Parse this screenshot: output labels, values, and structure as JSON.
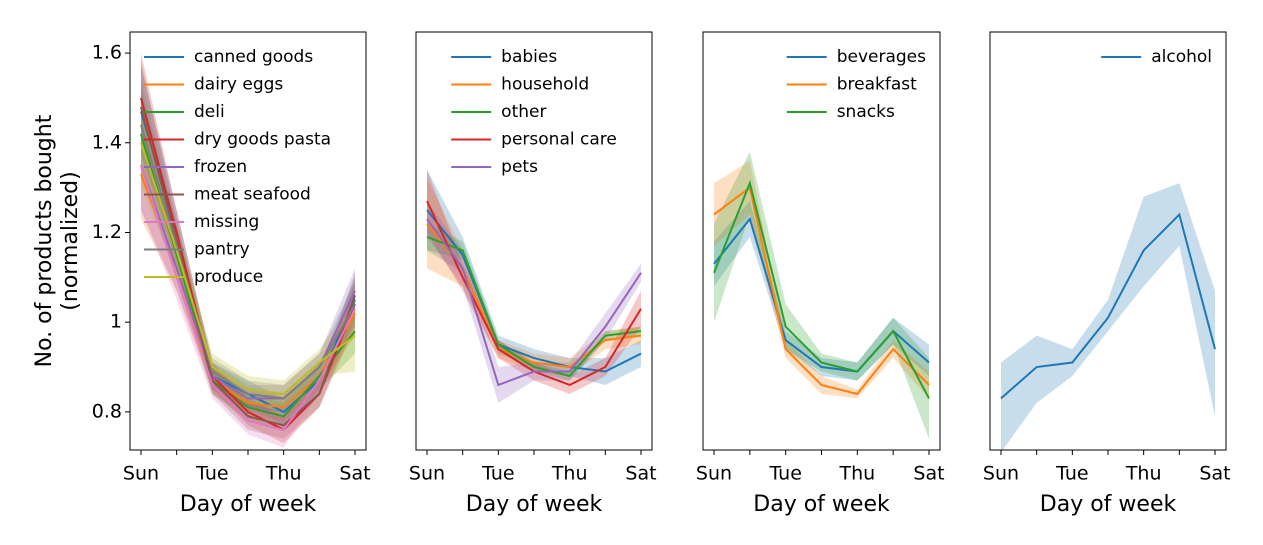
{
  "chart_data": [
    {
      "type": "line",
      "ylabel": "No. of products bought\n(normalized)",
      "xlabel": "Day of week",
      "categories": [
        "Sun",
        null,
        "Tue",
        null,
        "Thu",
        null,
        "Sat"
      ],
      "ylim": [
        0.715,
        1.647
      ],
      "yticks": [
        0.8,
        1.0,
        1.2,
        1.4,
        1.6
      ],
      "legend": "upper left",
      "series": [
        {
          "name": "canned goods",
          "color": "#1f77b4",
          "values": [
            1.47,
            1.2,
            0.88,
            0.84,
            0.8,
            0.87,
            1.05
          ],
          "lower": [
            1.37,
            1.15,
            0.85,
            0.81,
            0.77,
            0.84,
            1.0
          ],
          "upper": [
            1.57,
            1.25,
            0.91,
            0.87,
            0.83,
            0.9,
            1.1
          ]
        },
        {
          "name": "dairy eggs",
          "color": "#ff7f0e",
          "values": [
            1.33,
            1.12,
            0.87,
            0.82,
            0.81,
            0.88,
            1.02
          ],
          "lower": [
            1.23,
            1.07,
            0.84,
            0.79,
            0.78,
            0.85,
            0.97
          ],
          "upper": [
            1.43,
            1.17,
            0.9,
            0.85,
            0.84,
            0.91,
            1.07
          ]
        },
        {
          "name": "deli",
          "color": "#2ca02c",
          "values": [
            1.42,
            1.15,
            0.87,
            0.81,
            0.79,
            0.88,
            0.98
          ],
          "lower": [
            1.32,
            1.1,
            0.84,
            0.78,
            0.76,
            0.85,
            0.93
          ],
          "upper": [
            1.52,
            1.2,
            0.9,
            0.84,
            0.82,
            0.91,
            1.03
          ]
        },
        {
          "name": "dry goods pasta",
          "color": "#d62728",
          "values": [
            1.5,
            1.2,
            0.88,
            0.8,
            0.76,
            0.84,
            1.04
          ],
          "lower": [
            1.4,
            1.15,
            0.85,
            0.77,
            0.73,
            0.81,
            0.99
          ],
          "upper": [
            1.6,
            1.25,
            0.91,
            0.83,
            0.79,
            0.87,
            1.09
          ]
        },
        {
          "name": "frozen",
          "color": "#9467bd",
          "values": [
            1.35,
            1.12,
            0.88,
            0.83,
            0.83,
            0.9,
            1.07
          ],
          "lower": [
            1.25,
            1.07,
            0.85,
            0.8,
            0.8,
            0.87,
            1.02
          ],
          "upper": [
            1.45,
            1.17,
            0.91,
            0.86,
            0.86,
            0.93,
            1.12
          ]
        },
        {
          "name": "meat seafood",
          "color": "#8c564b",
          "values": [
            1.48,
            1.18,
            0.87,
            0.79,
            0.77,
            0.84,
            1.06
          ],
          "lower": [
            1.38,
            1.13,
            0.84,
            0.76,
            0.74,
            0.81,
            1.01
          ],
          "upper": [
            1.58,
            1.23,
            0.9,
            0.82,
            0.8,
            0.87,
            1.11
          ]
        },
        {
          "name": "missing",
          "color": "#e377c2",
          "values": [
            1.35,
            1.1,
            0.86,
            0.78,
            0.76,
            0.87,
            1.03
          ],
          "lower": [
            1.25,
            1.05,
            0.83,
            0.75,
            0.72,
            0.84,
            0.98
          ],
          "upper": [
            1.45,
            1.15,
            0.89,
            0.81,
            0.8,
            0.9,
            1.08
          ]
        },
        {
          "name": "pantry",
          "color": "#7f7f7f",
          "values": [
            1.44,
            1.17,
            0.89,
            0.84,
            0.83,
            0.9,
            1.04
          ],
          "lower": [
            1.34,
            1.12,
            0.86,
            0.81,
            0.8,
            0.87,
            0.99
          ],
          "upper": [
            1.54,
            1.22,
            0.92,
            0.87,
            0.86,
            0.93,
            1.09
          ]
        },
        {
          "name": "produce",
          "color": "#bcbd22",
          "values": [
            1.4,
            1.16,
            0.9,
            0.85,
            0.84,
            0.91,
            0.97
          ],
          "lower": [
            1.3,
            1.11,
            0.87,
            0.82,
            0.81,
            0.88,
            0.89
          ],
          "upper": [
            1.5,
            1.21,
            0.93,
            0.88,
            0.87,
            0.94,
            1.05
          ]
        }
      ]
    },
    {
      "type": "line",
      "xlabel": "Day of week",
      "categories": [
        "Sun",
        null,
        "Tue",
        null,
        "Thu",
        null,
        "Sat"
      ],
      "ylim": [
        0.715,
        1.647
      ],
      "legend": "upper center",
      "series": [
        {
          "name": "babies",
          "color": "#1f77b4",
          "values": [
            1.25,
            1.15,
            0.95,
            0.92,
            0.9,
            0.89,
            0.93
          ],
          "lower": [
            1.16,
            1.11,
            0.93,
            0.9,
            0.88,
            0.86,
            0.9
          ],
          "upper": [
            1.34,
            1.19,
            0.97,
            0.94,
            0.92,
            0.92,
            0.96
          ]
        },
        {
          "name": "household",
          "color": "#ff7f0e",
          "values": [
            1.22,
            1.12,
            0.94,
            0.91,
            0.9,
            0.96,
            0.97
          ],
          "lower": [
            1.12,
            1.08,
            0.92,
            0.89,
            0.88,
            0.94,
            0.95
          ],
          "upper": [
            1.32,
            1.16,
            0.96,
            0.93,
            0.92,
            0.98,
            0.99
          ]
        },
        {
          "name": "other",
          "color": "#2ca02c",
          "values": [
            1.19,
            1.16,
            0.95,
            0.9,
            0.88,
            0.97,
            0.98
          ],
          "lower": [
            1.16,
            1.14,
            0.94,
            0.89,
            0.87,
            0.96,
            0.97
          ],
          "upper": [
            1.22,
            1.18,
            0.96,
            0.91,
            0.89,
            0.98,
            0.99
          ]
        },
        {
          "name": "personal care",
          "color": "#d62728",
          "values": [
            1.27,
            1.1,
            0.94,
            0.89,
            0.86,
            0.9,
            1.03
          ],
          "lower": [
            1.2,
            1.07,
            0.92,
            0.87,
            0.84,
            0.88,
            0.99
          ],
          "upper": [
            1.34,
            1.13,
            0.96,
            0.91,
            0.88,
            0.92,
            1.07
          ]
        },
        {
          "name": "pets",
          "color": "#9467bd",
          "values": [
            1.23,
            1.12,
            0.86,
            0.89,
            0.89,
            0.99,
            1.11
          ],
          "lower": [
            1.19,
            1.08,
            0.82,
            0.87,
            0.87,
            0.96,
            1.09
          ],
          "upper": [
            1.27,
            1.16,
            0.9,
            0.91,
            0.91,
            1.02,
            1.13
          ]
        }
      ]
    },
    {
      "type": "line",
      "xlabel": "Day of week",
      "categories": [
        "Sun",
        null,
        "Tue",
        null,
        "Thu",
        null,
        "Sat"
      ],
      "ylim": [
        0.715,
        1.647
      ],
      "legend": "upper right",
      "series": [
        {
          "name": "beverages",
          "color": "#1f77b4",
          "values": [
            1.13,
            1.23,
            0.96,
            0.9,
            0.89,
            0.98,
            0.91
          ],
          "lower": [
            1.08,
            1.19,
            0.94,
            0.88,
            0.87,
            0.95,
            0.88
          ],
          "upper": [
            1.18,
            1.27,
            0.98,
            0.92,
            0.91,
            1.01,
            0.95
          ]
        },
        {
          "name": "breakfast",
          "color": "#ff7f0e",
          "values": [
            1.24,
            1.3,
            0.94,
            0.86,
            0.84,
            0.94,
            0.86
          ],
          "lower": [
            1.17,
            1.24,
            0.92,
            0.84,
            0.83,
            0.92,
            0.83
          ],
          "upper": [
            1.31,
            1.36,
            0.96,
            0.88,
            0.85,
            0.96,
            0.89
          ]
        },
        {
          "name": "snacks",
          "color": "#2ca02c",
          "values": [
            1.11,
            1.31,
            0.99,
            0.91,
            0.89,
            0.98,
            0.83
          ],
          "lower": [
            1.0,
            1.24,
            0.94,
            0.89,
            0.87,
            0.95,
            0.74
          ],
          "upper": [
            1.22,
            1.38,
            1.04,
            0.93,
            0.91,
            1.01,
            0.92
          ]
        }
      ]
    },
    {
      "type": "line",
      "xlabel": "Day of week",
      "categories": [
        "Sun",
        null,
        "Tue",
        null,
        "Thu",
        null,
        "Sat"
      ],
      "ylim": [
        0.715,
        1.647
      ],
      "legend": "upper right",
      "series": [
        {
          "name": "alcohol",
          "color": "#1f77b4",
          "values": [
            0.83,
            0.9,
            0.91,
            1.01,
            1.16,
            1.24,
            0.94
          ],
          "lower": [
            0.71,
            0.82,
            0.88,
            0.98,
            1.08,
            1.17,
            0.79
          ],
          "upper": [
            0.91,
            0.97,
            0.94,
            1.05,
            1.28,
            1.31,
            1.07
          ]
        }
      ]
    }
  ]
}
